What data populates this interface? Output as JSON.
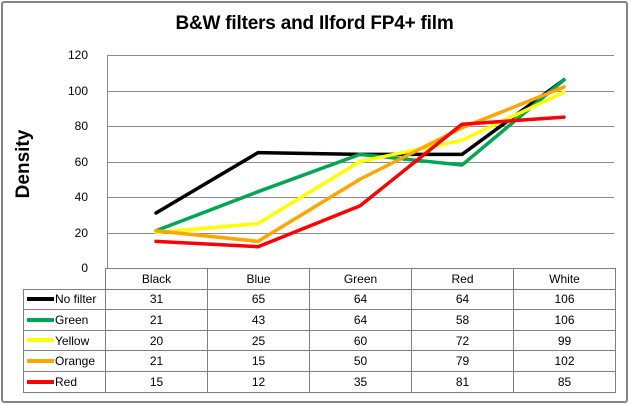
{
  "chart_data": {
    "type": "line",
    "title": "B&W filters and Ilford FP4+ film",
    "ylabel": "Density",
    "xlabel": "",
    "categories": [
      "Black",
      "Blue",
      "Green",
      "Red",
      "White"
    ],
    "series": [
      {
        "name": "No filter",
        "color": "#000000",
        "values": [
          31,
          65,
          64,
          64,
          106
        ]
      },
      {
        "name": "Green",
        "color": "#00A651",
        "values": [
          21,
          43,
          64,
          58,
          106
        ]
      },
      {
        "name": "Yellow",
        "color": "#FFFF00",
        "values": [
          20,
          25,
          60,
          72,
          99
        ]
      },
      {
        "name": "Orange",
        "color": "#FFA500",
        "values": [
          21,
          15,
          50,
          79,
          102
        ]
      },
      {
        "name": "Red",
        "color": "#FF0000",
        "values": [
          15,
          12,
          35,
          81,
          85
        ]
      }
    ],
    "ylim": [
      0,
      120
    ],
    "yticks": [
      0,
      20,
      40,
      60,
      80,
      100,
      120
    ],
    "grid": true,
    "legend_position": "data-table-left-column"
  },
  "colors": {
    "grid": "#8B8B8B",
    "axis": "#8B8B8B",
    "table_border": "#7F7F7F",
    "frame_border": "#858585",
    "background": "#FFFFFF",
    "text": "#000000"
  }
}
